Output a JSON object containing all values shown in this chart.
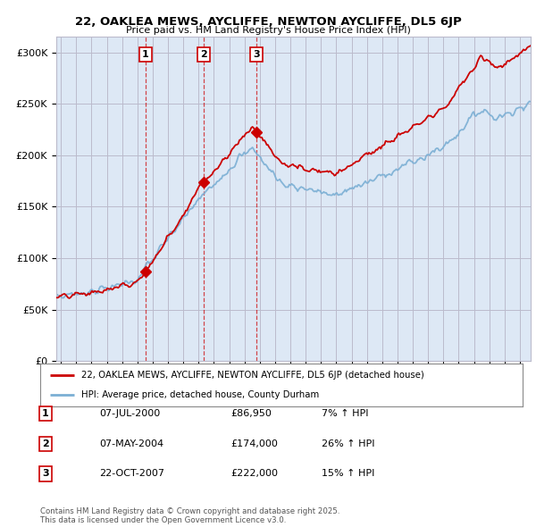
{
  "title": "22, OAKLEA MEWS, AYCLIFFE, NEWTON AYCLIFFE, DL5 6JP",
  "subtitle": "Price paid vs. HM Land Registry's House Price Index (HPI)",
  "ylabel_ticks": [
    "£0",
    "£50K",
    "£100K",
    "£150K",
    "£200K",
    "£250K",
    "£300K"
  ],
  "ytick_values": [
    0,
    50000,
    100000,
    150000,
    200000,
    250000,
    300000
  ],
  "ylim": [
    0,
    315000
  ],
  "xlim_start": 1994.7,
  "xlim_end": 2025.7,
  "sale_dates": [
    2000.52,
    2004.35,
    2007.8
  ],
  "sale_prices": [
    86950,
    174000,
    222000
  ],
  "sale_labels": [
    "1",
    "2",
    "3"
  ],
  "legend_line1": "22, OAKLEA MEWS, AYCLIFFE, NEWTON AYCLIFFE, DL5 6JP (detached house)",
  "legend_line2": "HPI: Average price, detached house, County Durham",
  "table_rows": [
    {
      "num": "1",
      "date": "07-JUL-2000",
      "price": "£86,950",
      "hpi": "7% ↑ HPI"
    },
    {
      "num": "2",
      "date": "07-MAY-2004",
      "price": "£174,000",
      "hpi": "26% ↑ HPI"
    },
    {
      "num": "3",
      "date": "22-OCT-2007",
      "price": "£222,000",
      "hpi": "15% ↑ HPI"
    }
  ],
  "footnote": "Contains HM Land Registry data © Crown copyright and database right 2025.\nThis data is licensed under the Open Government Licence v3.0.",
  "red_color": "#cc0000",
  "blue_color": "#7bafd4",
  "bg_fill": "#dde8f5",
  "grid_color": "#bbbbcc",
  "bg_color": "#ffffff"
}
